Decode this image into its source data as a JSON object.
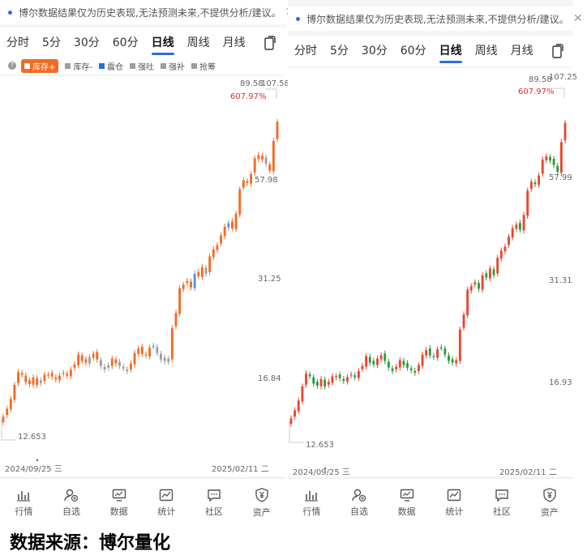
{
  "notice": {
    "text": "博尔数据结果仅为历史表现,无法预测未来,不提供分析/建议。",
    "close_icon": "close-icon"
  },
  "tabs": [
    {
      "label": "分时",
      "active": false
    },
    {
      "label": "5分",
      "active": false
    },
    {
      "label": "30分",
      "active": false
    },
    {
      "label": "60分",
      "active": false
    },
    {
      "label": "日线",
      "active": true
    },
    {
      "label": "周线",
      "active": false
    },
    {
      "label": "月线",
      "active": false
    }
  ],
  "indicators": [
    {
      "label": "库存+",
      "color": "#f26b24",
      "active": true
    },
    {
      "label": "库存-",
      "color": "#9e9e9e",
      "active": false
    },
    {
      "label": "震仓",
      "color": "#2b6fd6",
      "active": false
    },
    {
      "label": "强吐",
      "color": "#9e9e9e",
      "active": false
    },
    {
      "label": "强补",
      "color": "#9e9e9e",
      "active": false
    },
    {
      "label": "抢筹",
      "color": "#9e9e9e",
      "active": false
    }
  ],
  "nav": [
    {
      "label": "行情",
      "icon": "bar-chart-icon"
    },
    {
      "label": "自选",
      "icon": "user-add-icon"
    },
    {
      "label": "数据",
      "icon": "monitor-chart-icon"
    },
    {
      "label": "统计",
      "icon": "trend-icon"
    },
    {
      "label": "社区",
      "icon": "message-icon"
    },
    {
      "label": "资产",
      "icon": "yen-shield-icon"
    }
  ],
  "colors": {
    "up": "#e8472f",
    "down": "#2e9b3e",
    "orange": "#f26b24",
    "blue": "#5b8fd9",
    "gray": "#9e9e9e",
    "accent": "#2b6fd6"
  },
  "left": {
    "price_top": "89.58",
    "price_top_cut": "107.58",
    "pct": "607.97%",
    "levels": [
      "57.98",
      "31.25",
      "16.84",
      "12.653"
    ],
    "date_start": "2024/09/25 三",
    "date_end": "2025/02/11 二"
  },
  "right": {
    "price_top": "89.58",
    "price_top_cut": "107.25",
    "pct": "607.97%",
    "levels": [
      "57.99",
      "31.31",
      "16.93",
      "12.653"
    ],
    "date_start": "2024/09/25 三",
    "date_end": "2025/02/11 二"
  },
  "caption": "数据来源：博尔量化",
  "chart_data": [
    {
      "type": "candlestick",
      "title": "",
      "y_scale": "log",
      "ylim": [
        12.653,
        107.58
      ],
      "y_ticks": [
        12.653,
        16.84,
        31.25,
        57.98,
        89.58
      ],
      "x_range": [
        "2024/09/25",
        "2025/02/11"
      ],
      "high": 107.58,
      "low": 12.653,
      "pct_change": "607.97%",
      "color_scheme": "indicator (orange/gray/blue)",
      "close": [
        12.9,
        13.6,
        14.5,
        15.9,
        17.3,
        17.0,
        16.2,
        16.0,
        16.7,
        15.9,
        16.4,
        17.0,
        17.0,
        16.8,
        16.5,
        16.9,
        17.2,
        16.9,
        17.6,
        18.2,
        19.4,
        18.6,
        18.4,
        19.1,
        19.5,
        18.8,
        18.0,
        17.6,
        18.1,
        18.9,
        18.3,
        18.0,
        17.7,
        17.4,
        18.3,
        19.6,
        20.2,
        19.5,
        19.3,
        20.3,
        20.5,
        19.6,
        18.8,
        18.6,
        18.9,
        23.1,
        25.5,
        30.0,
        30.7,
        31.5,
        30.2,
        33.0,
        32.5,
        34.5,
        33.0,
        37.0,
        38.8,
        39.8,
        42.5,
        45.0,
        46.0,
        44.5,
        49.0,
        57.5,
        61.0,
        60.0,
        63.5,
        70.5,
        72.0,
        70.0,
        68.0,
        65.0,
        79.0,
        89.58
      ],
      "kind": [
        0,
        0,
        0,
        0,
        0,
        0,
        0,
        0,
        0,
        0,
        1,
        0,
        0,
        0,
        0,
        0,
        0,
        0,
        0,
        0,
        0,
        0,
        0,
        1,
        0,
        0,
        1,
        1,
        1,
        0,
        0,
        1,
        1,
        1,
        0,
        0,
        0,
        0,
        0,
        0,
        2,
        1,
        1,
        1,
        1,
        0,
        0,
        0,
        0,
        0,
        0,
        2,
        0,
        0,
        1,
        0,
        0,
        0,
        0,
        0,
        2,
        0,
        0,
        0,
        0,
        0,
        0,
        0,
        0,
        0,
        1,
        0,
        0,
        0
      ]
    },
    {
      "type": "candlestick",
      "title": "",
      "y_scale": "log",
      "ylim": [
        12.653,
        107.25
      ],
      "y_ticks": [
        12.653,
        16.93,
        31.31,
        57.99,
        89.58
      ],
      "x_range": [
        "2024/09/25",
        "2025/02/11"
      ],
      "high": 107.25,
      "low": 12.653,
      "pct_change": "607.97%",
      "color_scheme": "up red / down green",
      "close": [
        12.9,
        13.6,
        14.5,
        15.9,
        17.3,
        17.0,
        16.2,
        16.0,
        16.7,
        15.9,
        16.4,
        17.0,
        17.0,
        16.8,
        16.5,
        16.9,
        17.2,
        16.9,
        17.6,
        18.2,
        19.4,
        18.6,
        18.4,
        19.1,
        19.5,
        18.8,
        18.0,
        17.6,
        18.1,
        18.9,
        18.3,
        18.0,
        17.7,
        17.4,
        18.3,
        19.6,
        20.2,
        19.5,
        19.3,
        20.3,
        20.5,
        19.6,
        18.8,
        18.6,
        18.9,
        23.1,
        25.5,
        30.0,
        30.7,
        31.5,
        30.2,
        33.0,
        32.5,
        34.5,
        33.0,
        37.0,
        38.8,
        39.8,
        42.5,
        45.0,
        46.0,
        44.5,
        49.0,
        57.5,
        61.0,
        60.0,
        63.5,
        70.5,
        72.0,
        70.0,
        68.0,
        65.0,
        79.0,
        89.58
      ]
    }
  ]
}
